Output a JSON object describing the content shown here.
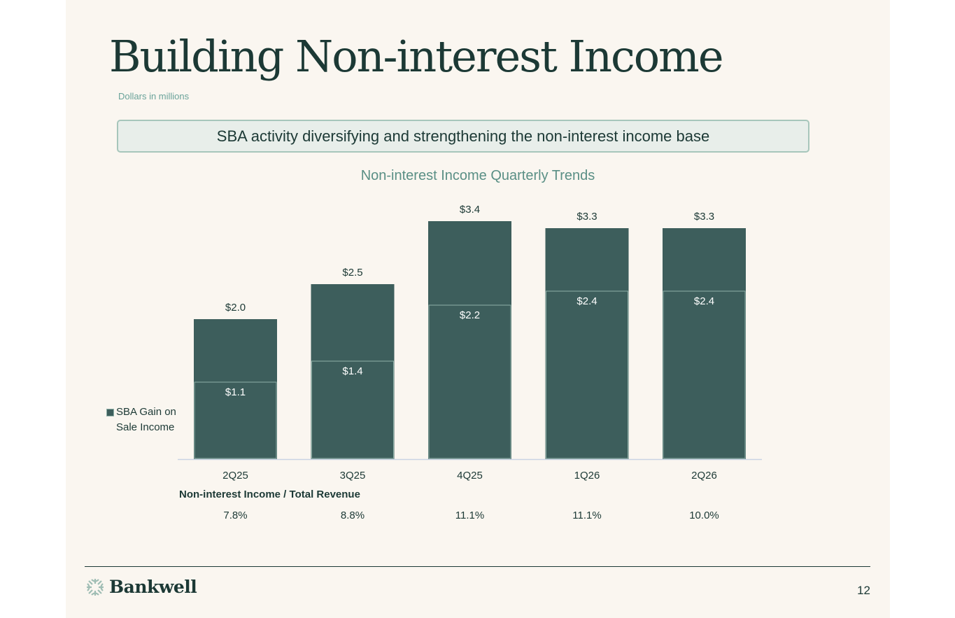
{
  "slide": {
    "title": "Building Non-interest Income",
    "subtitle": "Dollars in millions",
    "banner": "SBA activity diversifying and strengthening the non-interest income base",
    "page_number": "12"
  },
  "logo": {
    "name": "Bankwell"
  },
  "legend": {
    "label": "SBA Gain on Sale Income"
  },
  "chart_data": {
    "type": "bar",
    "title": "Non-interest Income Quarterly Trends",
    "categories": [
      "2Q25",
      "3Q25",
      "4Q25",
      "1Q26",
      "2Q26"
    ],
    "series": [
      {
        "name": "Total",
        "values": [
          2.0,
          2.5,
          3.4,
          3.3,
          3.3
        ],
        "labels": [
          "$2.0",
          "$2.5",
          "$3.4",
          "$3.3",
          "$3.3"
        ]
      },
      {
        "name": "SBA Gain on Sale Income",
        "values": [
          1.1,
          1.4,
          2.2,
          2.4,
          2.4
        ],
        "labels": [
          "$1.1",
          "$1.4",
          "$2.2",
          "$2.4",
          "$2.4"
        ]
      }
    ],
    "ratio_row": {
      "label": "Non-interest Income / Total Revenue",
      "values": [
        "7.8%",
        "8.8%",
        "11.1%",
        "11.1%",
        "10.0%"
      ]
    },
    "ylim": [
      0,
      3.5
    ],
    "colors": {
      "bar": "#3d5e5c",
      "inner_outline": "#8fb0a8",
      "axis": "#c9d3e3",
      "label": "#1c3935"
    }
  }
}
